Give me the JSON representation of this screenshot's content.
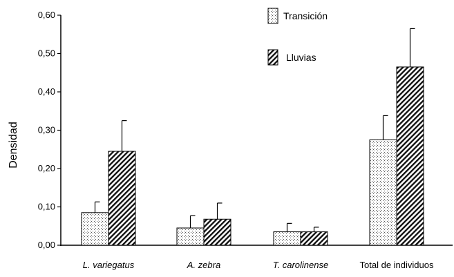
{
  "chart_data": {
    "type": "bar",
    "ylabel": "Densidad",
    "xlabel": "",
    "ylim": [
      0,
      0.6
    ],
    "yticks": [
      "0,00",
      "0,10",
      "0,20",
      "0,30",
      "0,40",
      "0,50",
      "0,60"
    ],
    "categories": [
      "L. variegatus",
      "A. zebra",
      "T. carolinense",
      "Total de individuos"
    ],
    "italic_categories": [
      true,
      true,
      true,
      false
    ],
    "series": [
      {
        "name": "Transición",
        "pattern": "dotted",
        "values": [
          0.085,
          0.045,
          0.035,
          0.275
        ],
        "errors": [
          0.028,
          0.032,
          0.022,
          0.063
        ]
      },
      {
        "name": "Lluvias",
        "pattern": "hatched",
        "values": [
          0.245,
          0.068,
          0.035,
          0.465
        ],
        "errors": [
          0.08,
          0.042,
          0.012,
          0.1
        ]
      }
    ],
    "legend": {
      "placement": "top-center"
    },
    "grid": false,
    "error_bars": "upper"
  }
}
